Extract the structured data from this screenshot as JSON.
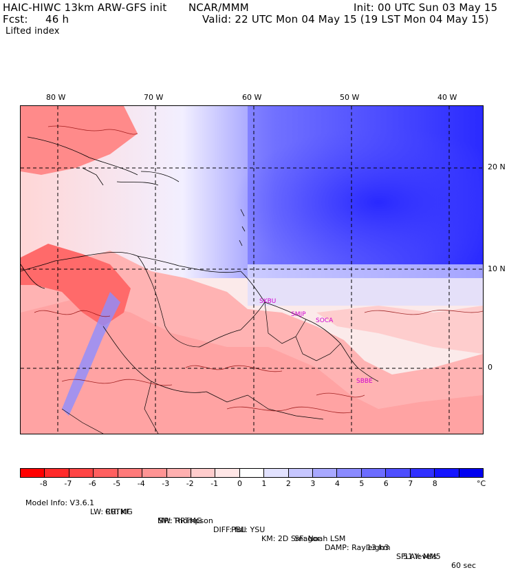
{
  "header": {
    "model": "HAIC-HIWC 13km ARW-GFS init",
    "org": "NCAR/MMM",
    "init": "Init: 00 UTC Sun 03 May 15",
    "fcst_label": "Fcst:",
    "fcst_value": "46 h",
    "valid": "Valid: 22 UTC Mon 04 May 15 (19 LST Mon 04 May 15)",
    "field": "Lifted index"
  },
  "map": {
    "lon_labels": [
      "80 W",
      "70 W",
      "60 W",
      "50 W",
      "40 W"
    ],
    "lat_labels": [
      "20 N",
      "10 N",
      "0"
    ],
    "sites": [
      "SKBU",
      "SMJP",
      "SOCA",
      "SBBE"
    ]
  },
  "colorbar": {
    "colors": [
      "#ff0000",
      "#ff2a2a",
      "#ff4545",
      "#ff6060",
      "#ff7a7a",
      "#ff9494",
      "#ffb0b0",
      "#ffcccc",
      "#ffe6e6",
      "#ffffff",
      "#e2e2ff",
      "#c6c6ff",
      "#a8a8ff",
      "#8a8aff",
      "#6c6cff",
      "#4e4eff",
      "#3030ff",
      "#1414ff",
      "#0000f0"
    ],
    "labels": [
      "-8",
      "-7",
      "-6",
      "-5",
      "-4",
      "-3",
      "-2",
      "-1",
      "0",
      "1",
      "2",
      "3",
      "4",
      "5",
      "6",
      "7",
      "8"
    ],
    "unit": "°C"
  },
  "model_info": {
    "line1": [
      "Model Info: V3.6.1",
      "CU: KF",
      "MP: Thompson",
      "PBL: YSU",
      "SF: Noah LSM",
      "13 km",
      "51 levels",
      "60 sec"
    ],
    "line2": [
      "LW: RRTMG",
      "SW: RRTMG",
      "DIFF: full",
      "KM: 2D Smagor",
      "DAMP: Rayleigh3",
      "SFLAY: MM5"
    ]
  }
}
